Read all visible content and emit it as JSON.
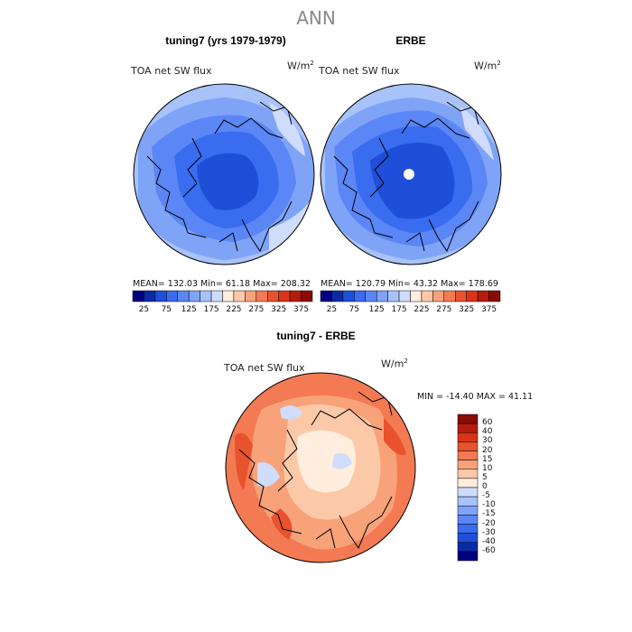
{
  "figure": {
    "title": "ANN",
    "variable": "TOA net SW flux",
    "units_base": "W/m",
    "units_exp": "2"
  },
  "panels": {
    "model": {
      "title": "tuning7 (yrs 1979-1979)",
      "stats": "MEAN= 132.03   Min=  61.18   Max= 208.32"
    },
    "obs": {
      "title": "ERBE",
      "stats": "MEAN= 120.79   Min=  43.32   Max= 178.69"
    },
    "diff": {
      "title": "tuning7 - ERBE",
      "stats": "MIN = -14.40  MAX =  41.11"
    }
  },
  "colorbar_abs": {
    "labels": [
      "25",
      "75",
      "125",
      "175",
      "225",
      "275",
      "325",
      "375"
    ],
    "colors": [
      "#000080",
      "#0b2aa8",
      "#1f4fd8",
      "#3a6cf0",
      "#5b86f5",
      "#7fa3f7",
      "#a8c2fa",
      "#cfdcfb",
      "#ffeede",
      "#fcc9a8",
      "#f8a27a",
      "#f37a52",
      "#e9522e",
      "#d93418",
      "#b51c0c",
      "#8a0b04"
    ]
  },
  "colorbar_diff": {
    "labels": [
      "60",
      "40",
      "30",
      "20",
      "15",
      "10",
      "5",
      "0",
      "-5",
      "-10",
      "-15",
      "-20",
      "-30",
      "-40",
      "-60"
    ],
    "colors": [
      "#8a0b04",
      "#b51c0c",
      "#d93418",
      "#e9522e",
      "#f37a52",
      "#f8a27a",
      "#fcc9a8",
      "#ffeede",
      "#cfdcfb",
      "#a8c2fa",
      "#7fa3f7",
      "#5b86f5",
      "#3a6cf0",
      "#1f4fd8",
      "#0b2aa8",
      "#000080"
    ]
  }
}
